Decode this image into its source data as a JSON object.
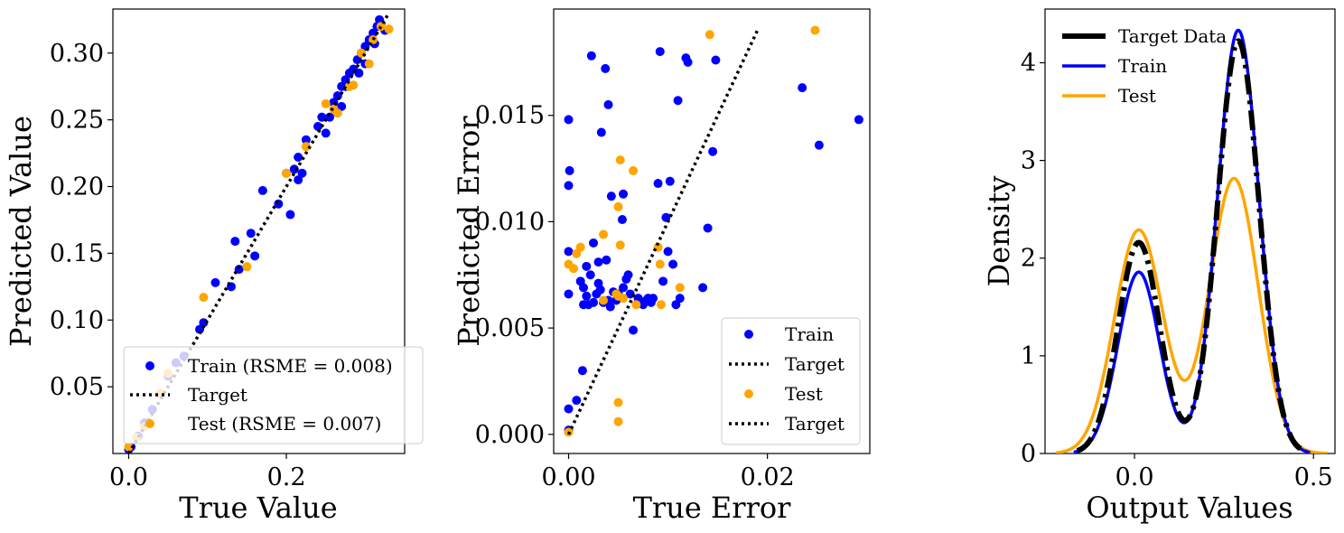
{
  "colors": {
    "train": "#0000ff",
    "test": "#ffa500",
    "target": "#000000"
  },
  "chart_data": [
    {
      "type": "scatter",
      "xlabel": "True Value",
      "ylabel": "Predicted Value",
      "xlim": [
        -0.02,
        0.35
      ],
      "ylim": [
        0.0,
        0.333
      ],
      "xticks": [
        0.0,
        0.2
      ],
      "xtick_labels": [
        "0.0",
        "0.2"
      ],
      "yticks": [
        0.05,
        0.1,
        0.15,
        0.2,
        0.25,
        0.3
      ],
      "ytick_labels": [
        "0.05",
        "0.10",
        "0.15",
        "0.20",
        "0.25",
        "0.30"
      ],
      "legend_position": "lower-right",
      "legend": [
        {
          "key": "train",
          "label": "Train (RSME = 0.008)"
        },
        {
          "key": "target",
          "label": "Target"
        },
        {
          "key": "test",
          "label": "Test (RSME = 0.007)"
        }
      ],
      "target_line": {
        "x": [
          0.0,
          0.33
        ],
        "y": [
          0.0,
          0.33
        ]
      },
      "series": [
        {
          "key": "train",
          "points": [
            [
              0.0,
              0.003
            ],
            [
              0.003,
              0.005
            ],
            [
              0.012,
              0.013
            ],
            [
              0.02,
              0.023
            ],
            [
              0.03,
              0.033
            ],
            [
              0.04,
              0.045
            ],
            [
              0.05,
              0.058
            ],
            [
              0.06,
              0.068
            ],
            [
              0.07,
              0.073
            ],
            [
              0.09,
              0.093
            ],
            [
              0.095,
              0.098
            ],
            [
              0.11,
              0.128
            ],
            [
              0.13,
              0.125
            ],
            [
              0.14,
              0.138
            ],
            [
              0.135,
              0.159
            ],
            [
              0.16,
              0.148
            ],
            [
              0.155,
              0.165
            ],
            [
              0.17,
              0.197
            ],
            [
              0.19,
              0.187
            ],
            [
              0.2,
              0.21
            ],
            [
              0.205,
              0.179
            ],
            [
              0.21,
              0.213
            ],
            [
              0.215,
              0.205
            ],
            [
              0.215,
              0.222
            ],
            [
              0.22,
              0.21
            ],
            [
              0.225,
              0.235
            ],
            [
              0.24,
              0.245
            ],
            [
              0.245,
              0.252
            ],
            [
              0.25,
              0.24
            ],
            [
              0.255,
              0.252
            ],
            [
              0.26,
              0.263
            ],
            [
              0.265,
              0.268
            ],
            [
              0.27,
              0.26
            ],
            [
              0.27,
              0.275
            ],
            [
              0.275,
              0.28
            ],
            [
              0.28,
              0.285
            ],
            [
              0.285,
              0.288
            ],
            [
              0.29,
              0.295
            ],
            [
              0.292,
              0.285
            ],
            [
              0.295,
              0.3
            ],
            [
              0.3,
              0.305
            ],
            [
              0.305,
              0.31
            ],
            [
              0.31,
              0.315
            ],
            [
              0.312,
              0.307
            ],
            [
              0.315,
              0.32
            ],
            [
              0.32,
              0.322
            ],
            [
              0.325,
              0.317
            ],
            [
              0.318,
              0.325
            ],
            [
              0.275,
              0.275
            ],
            [
              0.3,
              0.292
            ]
          ]
        },
        {
          "key": "test",
          "points": [
            [
              0.0,
              0.005
            ],
            [
              0.01,
              0.012
            ],
            [
              0.02,
              0.02
            ],
            [
              0.04,
              0.045
            ],
            [
              0.05,
              0.06
            ],
            [
              0.095,
              0.117
            ],
            [
              0.15,
              0.14
            ],
            [
              0.2,
              0.21
            ],
            [
              0.225,
              0.23
            ],
            [
              0.25,
              0.262
            ],
            [
              0.26,
              0.258
            ],
            [
              0.265,
              0.255
            ],
            [
              0.28,
              0.275
            ],
            [
              0.285,
              0.276
            ],
            [
              0.295,
              0.3
            ],
            [
              0.305,
              0.292
            ],
            [
              0.31,
              0.31
            ],
            [
              0.33,
              0.318
            ],
            [
              0.32,
              0.32
            ]
          ]
        }
      ]
    },
    {
      "type": "scatter",
      "xlabel": "True Error",
      "ylabel": "Predicted Error",
      "xlim": [
        -0.0015,
        0.0303
      ],
      "ylim": [
        -0.0009,
        0.02
      ],
      "xticks": [
        0.0,
        0.02
      ],
      "xtick_labels": [
        "0.00",
        "0.02"
      ],
      "yticks": [
        0.0,
        0.005,
        0.01,
        0.015
      ],
      "ytick_labels": [
        "0.000",
        "0.005",
        "0.010",
        "0.015"
      ],
      "legend_position": "lower-right",
      "legend": [
        {
          "key": "train",
          "label": "Train"
        },
        {
          "key": "target",
          "label": "Target"
        },
        {
          "key": "test",
          "label": "Test"
        },
        {
          "key": "target",
          "label": "Target"
        }
      ],
      "target_line": {
        "x": [
          0.0,
          0.019
        ],
        "y": [
          0.0,
          0.019
        ]
      },
      "series": [
        {
          "key": "train",
          "points": [
            [
              0.0,
              0.0148
            ],
            [
              0.0001,
              0.0124
            ],
            [
              0.0,
              0.0117
            ],
            [
              0.0,
              0.0086
            ],
            [
              0.0,
              0.0066
            ],
            [
              0.0,
              0.0012
            ],
            [
              0.0,
              0.0002
            ],
            [
              0.0008,
              0.0016
            ],
            [
              0.0014,
              0.003
            ],
            [
              0.0023,
              0.0178
            ],
            [
              0.0033,
              0.0142
            ],
            [
              0.0037,
              0.0172
            ],
            [
              0.004,
              0.0155
            ],
            [
              0.0043,
              0.0112
            ],
            [
              0.0055,
              0.0113
            ],
            [
              0.0054,
              0.0101
            ],
            [
              0.0012,
              0.0072
            ],
            [
              0.0015,
              0.0069
            ],
            [
              0.0018,
              0.0065
            ],
            [
              0.002,
              0.0061
            ],
            [
              0.0022,
              0.0075
            ],
            [
              0.0025,
              0.0062
            ],
            [
              0.0028,
              0.0066
            ],
            [
              0.003,
              0.0071
            ],
            [
              0.0032,
              0.0068
            ],
            [
              0.0035,
              0.0062
            ],
            [
              0.0038,
              0.0082
            ],
            [
              0.004,
              0.0063
            ],
            [
              0.0042,
              0.006
            ],
            [
              0.0045,
              0.0067
            ],
            [
              0.0048,
              0.0063
            ],
            [
              0.005,
              0.0066
            ],
            [
              0.0055,
              0.0069
            ],
            [
              0.0058,
              0.0073
            ],
            [
              0.006,
              0.0075
            ],
            [
              0.0062,
              0.0066
            ],
            [
              0.0065,
              0.0049
            ],
            [
              0.007,
              0.0064
            ],
            [
              0.0075,
              0.0061
            ],
            [
              0.0078,
              0.0063
            ],
            [
              0.008,
              0.0064
            ],
            [
              0.0083,
              0.0062
            ],
            [
              0.0085,
              0.0064
            ],
            [
              0.009,
              0.0118
            ],
            [
              0.0092,
              0.018
            ],
            [
              0.0095,
              0.0072
            ],
            [
              0.0098,
              0.0102
            ],
            [
              0.01,
              0.0086
            ],
            [
              0.0102,
              0.0119
            ],
            [
              0.0105,
              0.008
            ],
            [
              0.0108,
              0.0061
            ],
            [
              0.011,
              0.0157
            ],
            [
              0.0112,
              0.0064
            ],
            [
              0.0118,
              0.0177
            ],
            [
              0.012,
              0.0175
            ],
            [
              0.0135,
              0.0069
            ],
            [
              0.014,
              0.0097
            ],
            [
              0.0145,
              0.0133
            ],
            [
              0.0148,
              0.0176
            ],
            [
              0.0235,
              0.0163
            ],
            [
              0.0252,
              0.0136
            ],
            [
              0.0292,
              0.0148
            ],
            [
              0.0025,
              0.009
            ],
            [
              0.003,
              0.0081
            ],
            [
              0.0018,
              0.0079
            ],
            [
              0.0015,
              0.0061
            ]
          ]
        },
        {
          "key": "test",
          "points": [
            [
              0.0,
              0.0001
            ],
            [
              0.0,
              0.008
            ],
            [
              0.0005,
              0.0078
            ],
            [
              0.0008,
              0.0085
            ],
            [
              0.0012,
              0.0088
            ],
            [
              0.0035,
              0.0094
            ],
            [
              0.0035,
              0.0063
            ],
            [
              0.0048,
              0.0066
            ],
            [
              0.005,
              0.0065
            ],
            [
              0.005,
              0.0107
            ],
            [
              0.0052,
              0.0129
            ],
            [
              0.0052,
              0.0089
            ],
            [
              0.0055,
              0.0064
            ],
            [
              0.0065,
              0.0124
            ],
            [
              0.0068,
              0.0061
            ],
            [
              0.009,
              0.0088
            ],
            [
              0.0092,
              0.008
            ],
            [
              0.0093,
              0.0061
            ],
            [
              0.0112,
              0.0069
            ],
            [
              0.0142,
              0.0188
            ],
            [
              0.0248,
              0.019
            ],
            [
              0.005,
              0.0015
            ],
            [
              0.005,
              0.0006
            ]
          ]
        }
      ]
    },
    {
      "type": "line",
      "xlabel": "Output Values",
      "ylabel": "Density",
      "xlim": [
        -0.25,
        0.56
      ],
      "ylim": [
        0,
        4.55
      ],
      "xticks": [
        0.0,
        0.5
      ],
      "xtick_labels": [
        "0.0",
        "0.5"
      ],
      "yticks": [
        0,
        1,
        2,
        3,
        4
      ],
      "ytick_labels": [
        "0",
        "1",
        "2",
        "3",
        "4"
      ],
      "legend_position": "upper-left",
      "legend": [
        {
          "key": "target_data",
          "label": "Target Data"
        },
        {
          "key": "train",
          "label": "Train"
        },
        {
          "key": "test",
          "label": "Test"
        }
      ],
      "series": [
        {
          "key": "target_data",
          "components": [
            [
              0.012,
              0.058,
              0.314
            ],
            [
              0.29,
              0.058,
              0.614
            ]
          ],
          "x_range": [
            -0.16,
            0.48
          ]
        },
        {
          "key": "train",
          "components": [
            [
              0.012,
              0.058,
              0.27
            ],
            [
              0.29,
              0.058,
              0.63
            ]
          ],
          "x_range": [
            -0.17,
            0.49
          ]
        },
        {
          "key": "test",
          "components": [
            [
              0.012,
              0.068,
              0.39
            ],
            [
              0.278,
              0.068,
              0.48
            ]
          ],
          "x_range": [
            -0.22,
            0.54
          ]
        }
      ]
    }
  ]
}
